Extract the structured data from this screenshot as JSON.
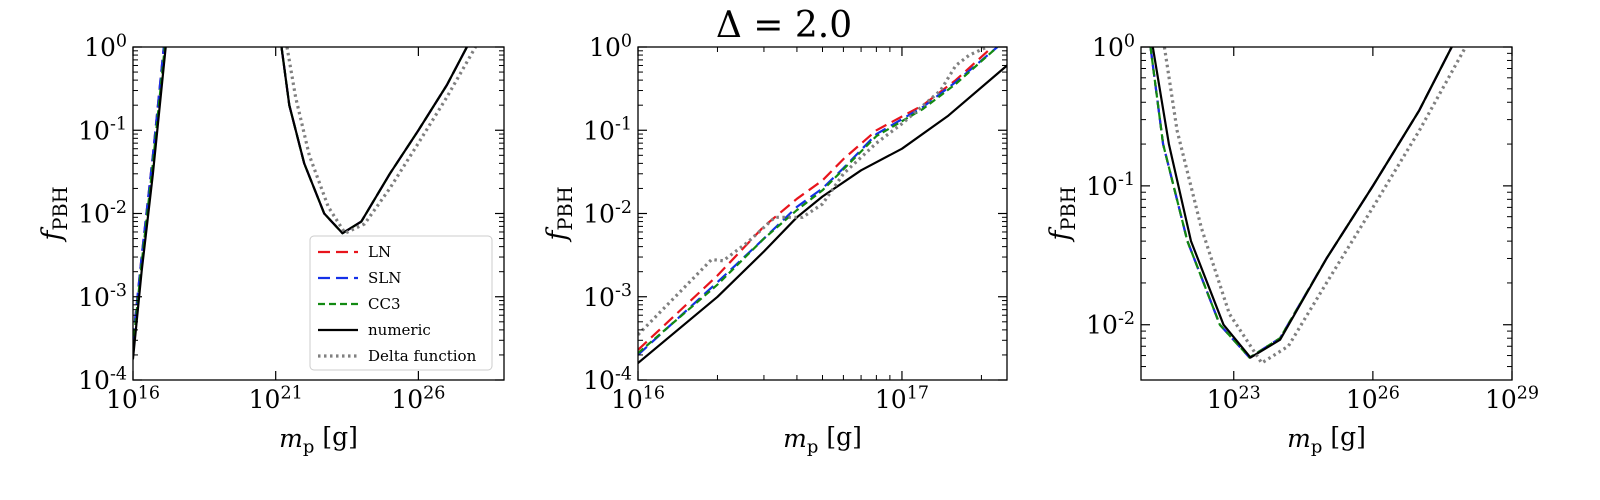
{
  "figure": {
    "title": "Δ = 2.0"
  },
  "chart_data": [
    {
      "type": "line",
      "xlabel": "m_p [g]",
      "ylabel": "f_PBH",
      "xscale": "log",
      "yscale": "log",
      "xlim": [
        1e+16,
        1e+29
      ],
      "ylim": [
        0.0001,
        1
      ],
      "xticks": [
        {
          "v": 1e+16,
          "label": "10^16"
        },
        {
          "v": 1e+21,
          "label": "10^21"
        },
        {
          "v": 1e+26,
          "label": "10^26"
        }
      ],
      "yticks": [
        {
          "v": 0.0001,
          "label": "10^-4"
        },
        {
          "v": 0.001,
          "label": "10^-3"
        },
        {
          "v": 0.01,
          "label": "10^-2"
        },
        {
          "v": 0.1,
          "label": "10^-1"
        },
        {
          "v": 1,
          "label": "10^0"
        }
      ],
      "legend": {
        "placement": "lower-right",
        "entries": [
          {
            "label": "LN",
            "series": "LN"
          },
          {
            "label": "SLN",
            "series": "SLN"
          },
          {
            "label": "CC3",
            "series": "CC3"
          },
          {
            "label": "numeric",
            "series": "numeric"
          },
          {
            "label": "Delta function",
            "series": "Delta function"
          }
        ]
      },
      "series": [
        {
          "name": "LN",
          "color": "#e8141c",
          "dash": "12 6",
          "width": 2.2,
          "segments": [
            [
              [
                1e+16,
                0.0003
              ],
              [
                2e+16,
                0.003
              ],
              [
                5e+16,
                0.05
              ],
              [
                1.2e+17,
                1
              ]
            ],
            [
              [
                1.6e+21,
                1
              ],
              [
                3e+21,
                0.2
              ],
              [
                1e+22,
                0.04
              ],
              [
                5e+22,
                0.01
              ],
              [
                2.2e+23,
                0.0058
              ],
              [
                1e+24,
                0.008
              ],
              [
                1e+25,
                0.03
              ],
              [
                1e+26,
                0.1
              ],
              [
                1e+27,
                0.35
              ],
              [
                5e+27,
                1
              ]
            ]
          ]
        },
        {
          "name": "SLN",
          "color": "#1430e8",
          "dash": "12 6",
          "width": 2.2,
          "segments": [
            [
              [
                1e+16,
                0.0003
              ],
              [
                2e+16,
                0.003
              ],
              [
                5e+16,
                0.05
              ],
              [
                1.2e+17,
                1
              ]
            ],
            [
              [
                1.6e+21,
                1
              ],
              [
                3e+21,
                0.2
              ],
              [
                1e+22,
                0.04
              ],
              [
                5e+22,
                0.01
              ],
              [
                2.2e+23,
                0.0058
              ],
              [
                1e+24,
                0.008
              ],
              [
                1e+25,
                0.03
              ],
              [
                1e+26,
                0.1
              ],
              [
                1e+27,
                0.35
              ],
              [
                5e+27,
                1
              ]
            ]
          ]
        },
        {
          "name": "CC3",
          "color": "#128a12",
          "dash": "7 4",
          "width": 2.2,
          "segments": [
            [
              [
                1e+16,
                0.00025
              ],
              [
                2e+16,
                0.0025
              ],
              [
                5e+16,
                0.04
              ],
              [
                1.3e+17,
                1
              ]
            ],
            [
              [
                1.6e+21,
                1
              ],
              [
                3e+21,
                0.2
              ],
              [
                1e+22,
                0.04
              ],
              [
                5e+22,
                0.01
              ],
              [
                2.2e+23,
                0.0058
              ],
              [
                1e+24,
                0.008
              ],
              [
                1e+25,
                0.03
              ],
              [
                1e+26,
                0.1
              ],
              [
                1e+27,
                0.35
              ],
              [
                5e+27,
                1
              ]
            ]
          ]
        },
        {
          "name": "numeric",
          "color": "#000000",
          "dash": "",
          "width": 2.2,
          "segments": [
            [
              [
                1e+16,
                0.00018
              ],
              [
                2e+16,
                0.002
              ],
              [
                5e+16,
                0.03
              ],
              [
                1.4e+17,
                1
              ]
            ],
            [
              [
                1.6e+21,
                1
              ],
              [
                3e+21,
                0.2
              ],
              [
                1e+22,
                0.04
              ],
              [
                5e+22,
                0.01
              ],
              [
                2.2e+23,
                0.0058
              ],
              [
                1e+24,
                0.008
              ],
              [
                1e+25,
                0.03
              ],
              [
                1e+26,
                0.1
              ],
              [
                1e+27,
                0.35
              ],
              [
                5e+27,
                1
              ]
            ]
          ]
        },
        {
          "name": "Delta function",
          "color": "#808080",
          "dash": "2.5 3.5",
          "width": 3.2,
          "segments": [
            [
              [
                2.5e+21,
                1
              ],
              [
                5e+21,
                0.25
              ],
              [
                1.5e+22,
                0.05
              ],
              [
                7e+22,
                0.012
              ],
              [
                2.7e+23,
                0.0058
              ],
              [
                1.3e+24,
                0.0075
              ],
              [
                1e+25,
                0.02
              ],
              [
                1e+26,
                0.07
              ],
              [
                1e+27,
                0.25
              ],
              [
                1e+28,
                1
              ]
            ]
          ]
        }
      ]
    },
    {
      "type": "line",
      "xlabel": "m_p [g]",
      "ylabel": "f_PBH",
      "xscale": "log",
      "yscale": "log",
      "xlim": [
        1e+16,
        2.5e+17
      ],
      "ylim": [
        0.0001,
        1
      ],
      "xticks": [
        {
          "v": 1e+16,
          "label": "10^16"
        },
        {
          "v": 1e+17,
          "label": "10^17"
        }
      ],
      "yticks": [
        {
          "v": 0.0001,
          "label": "10^-4"
        },
        {
          "v": 0.001,
          "label": "10^-3"
        },
        {
          "v": 0.01,
          "label": "10^-2"
        },
        {
          "v": 0.1,
          "label": "10^-1"
        },
        {
          "v": 1,
          "label": "10^0"
        }
      ],
      "series": [
        {
          "name": "LN",
          "color": "#e8141c",
          "dash": "12 6",
          "width": 2.2,
          "segments": [
            [
              [
                1e+16,
                0.00023
              ],
              [
                2e+16,
                0.0018
              ],
              [
                3e+16,
                0.007
              ],
              [
                4e+16,
                0.015
              ],
              [
                5e+16,
                0.025
              ],
              [
                6e+16,
                0.045
              ],
              [
                8e+16,
                0.1
              ],
              [
                1.2e+17,
                0.2
              ],
              [
                1.6e+17,
                0.4
              ],
              [
                2.2e+17,
                1
              ]
            ]
          ]
        },
        {
          "name": "SLN",
          "color": "#1430e8",
          "dash": "12 6",
          "width": 2.2,
          "segments": [
            [
              [
                1e+16,
                0.0002
              ],
              [
                2e+16,
                0.0015
              ],
              [
                3e+16,
                0.005
              ],
              [
                4e+16,
                0.012
              ],
              [
                5e+16,
                0.02
              ],
              [
                6e+16,
                0.035
              ],
              [
                8e+16,
                0.09
              ],
              [
                1.2e+17,
                0.19
              ],
              [
                1.6e+17,
                0.38
              ],
              [
                2.3e+17,
                1
              ]
            ]
          ]
        },
        {
          "name": "CC3",
          "color": "#128a12",
          "dash": "7 4",
          "width": 2.2,
          "segments": [
            [
              [
                1e+16,
                0.00021
              ],
              [
                2e+16,
                0.0014
              ],
              [
                3e+16,
                0.005
              ],
              [
                4e+16,
                0.011
              ],
              [
                5e+16,
                0.019
              ],
              [
                6e+16,
                0.034
              ],
              [
                8e+16,
                0.085
              ],
              [
                1.2e+17,
                0.18
              ],
              [
                1.6e+17,
                0.36
              ],
              [
                2.3e+17,
                1
              ]
            ]
          ]
        },
        {
          "name": "numeric",
          "color": "#000000",
          "dash": "",
          "width": 2.2,
          "segments": [
            [
              [
                1e+16,
                0.00016
              ],
              [
                2e+16,
                0.001
              ],
              [
                3e+16,
                0.0035
              ],
              [
                4e+16,
                0.009
              ],
              [
                5e+16,
                0.016
              ],
              [
                7e+16,
                0.033
              ],
              [
                1e+17,
                0.06
              ],
              [
                1.5e+17,
                0.15
              ],
              [
                2.5e+17,
                0.6
              ]
            ]
          ]
        },
        {
          "name": "Delta function",
          "color": "#808080",
          "dash": "2.5 3.5",
          "width": 3.2,
          "segments": [
            [
              [
                1e+16,
                0.00035
              ],
              [
                1.5e+16,
                0.0013
              ],
              [
                1.9e+16,
                0.0028
              ],
              [
                2.1e+16,
                0.0027
              ],
              [
                2.6e+16,
                0.0045
              ],
              [
                3.3e+16,
                0.009
              ],
              [
                4.2e+16,
                0.009
              ],
              [
                5e+16,
                0.013
              ],
              [
                6e+16,
                0.03
              ],
              [
                8e+16,
                0.07
              ],
              [
                1e+17,
                0.12
              ],
              [
                1.4e+17,
                0.3
              ],
              [
                1.6e+17,
                0.6
              ],
              [
                1.8e+17,
                0.8
              ],
              [
                2.1e+17,
                1
              ]
            ]
          ]
        }
      ]
    },
    {
      "type": "line",
      "xlabel": "m_p [g]",
      "ylabel": "f_PBH",
      "xscale": "log",
      "yscale": "log",
      "xlim": [
        1e+21,
        1e+29
      ],
      "ylim": [
        0.004,
        1
      ],
      "xticks": [
        {
          "v": 1e+23,
          "label": "10^23"
        },
        {
          "v": 1e+26,
          "label": "10^26"
        },
        {
          "v": 1e+29,
          "label": "10^29"
        }
      ],
      "yticks": [
        {
          "v": 0.01,
          "label": "10^-2"
        },
        {
          "v": 0.1,
          "label": "10^-1"
        },
        {
          "v": 1,
          "label": "10^0"
        }
      ],
      "series": [
        {
          "name": "LN",
          "color": "#e8141c",
          "dash": "12 6",
          "width": 2.2,
          "segments": [
            [
              [
                1.6e+21,
                1
              ],
              [
                3e+21,
                0.2
              ],
              [
                1e+22,
                0.04
              ],
              [
                5e+22,
                0.01
              ],
              [
                2.2e+23,
                0.0058
              ],
              [
                1e+24,
                0.008
              ],
              [
                1e+25,
                0.03
              ],
              [
                1e+26,
                0.1
              ],
              [
                1e+27,
                0.35
              ],
              [
                5e+27,
                1
              ]
            ]
          ]
        },
        {
          "name": "SLN",
          "color": "#1430e8",
          "dash": "12 6",
          "width": 2.2,
          "segments": [
            [
              [
                1.6e+21,
                1
              ],
              [
                3e+21,
                0.2
              ],
              [
                1e+22,
                0.04
              ],
              [
                5e+22,
                0.01
              ],
              [
                2.2e+23,
                0.0058
              ],
              [
                1e+24,
                0.008
              ],
              [
                1e+25,
                0.03
              ],
              [
                1e+26,
                0.1
              ],
              [
                1e+27,
                0.35
              ],
              [
                5e+27,
                1
              ]
            ]
          ]
        },
        {
          "name": "CC3",
          "color": "#128a12",
          "dash": "7 4",
          "width": 2.2,
          "segments": [
            [
              [
                1.6e+21,
                1
              ],
              [
                3e+21,
                0.2
              ],
              [
                1e+22,
                0.04
              ],
              [
                5e+22,
                0.01
              ],
              [
                2.2e+23,
                0.0058
              ],
              [
                1e+24,
                0.008
              ],
              [
                1e+25,
                0.03
              ],
              [
                1e+26,
                0.1
              ],
              [
                1e+27,
                0.35
              ],
              [
                5e+27,
                1
              ]
            ]
          ]
        },
        {
          "name": "numeric",
          "color": "#000000",
          "dash": "",
          "width": 2.2,
          "segments": [
            [
              [
                1.8e+21,
                1
              ],
              [
                4e+21,
                0.2
              ],
              [
                1.2e+22,
                0.04
              ],
              [
                6e+22,
                0.01
              ],
              [
                2.3e+23,
                0.0058
              ],
              [
                1e+24,
                0.0078
              ],
              [
                1e+25,
                0.03
              ],
              [
                1e+26,
                0.1
              ],
              [
                1e+27,
                0.35
              ],
              [
                5e+27,
                1
              ]
            ]
          ]
        },
        {
          "name": "Delta function",
          "color": "#808080",
          "dash": "2.5 3.5",
          "width": 3.2,
          "segments": [
            [
              [
                3.2e+21,
                1
              ],
              [
                6e+21,
                0.25
              ],
              [
                2e+22,
                0.05
              ],
              [
                8e+22,
                0.012
              ],
              [
                4e+23,
                0.0053
              ],
              [
                1.5e+24,
                0.007
              ],
              [
                1e+25,
                0.02
              ],
              [
                1e+26,
                0.07
              ],
              [
                1e+27,
                0.25
              ],
              [
                1e+28,
                1
              ]
            ]
          ]
        }
      ]
    }
  ]
}
